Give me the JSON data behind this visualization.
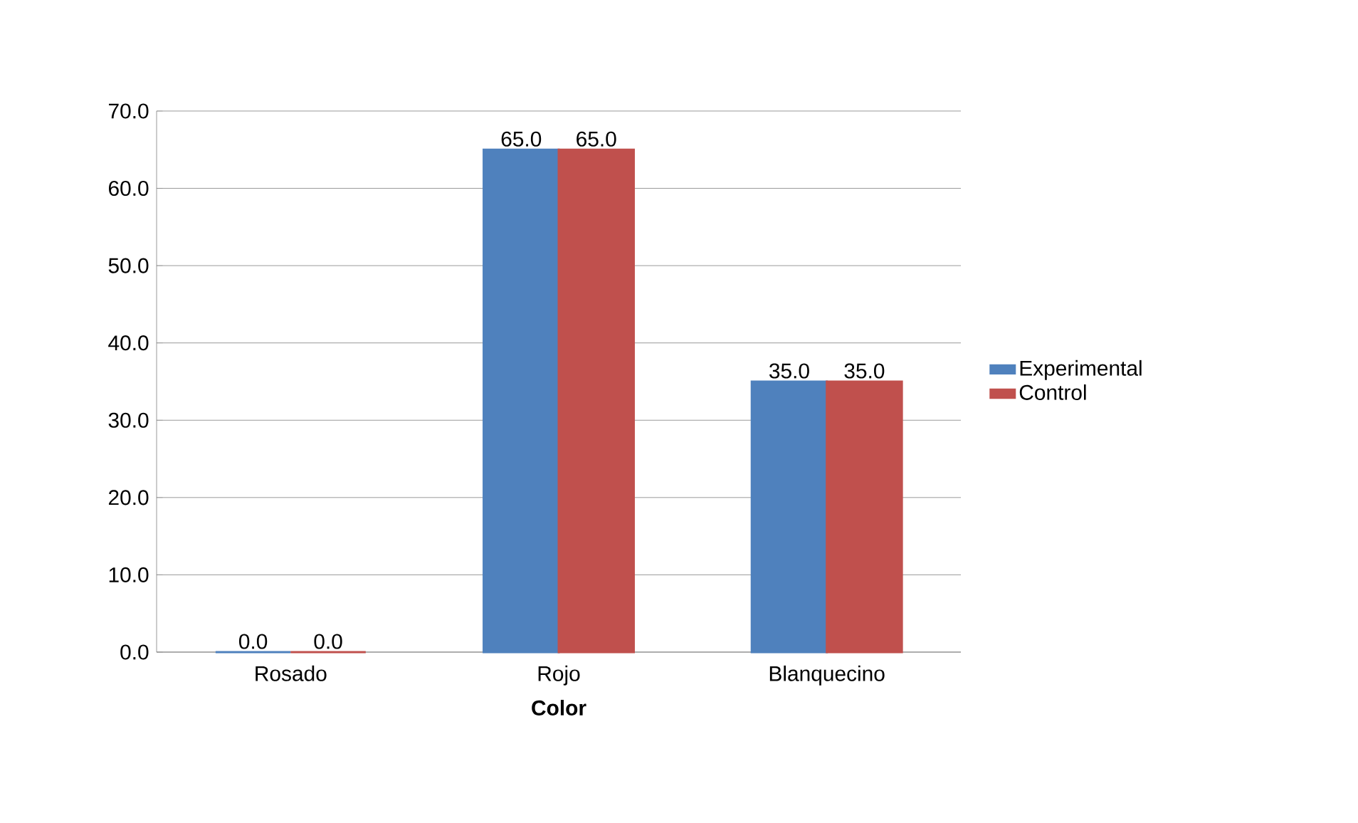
{
  "chart_data": {
    "type": "bar",
    "xlabel": "Color",
    "categories": [
      "Rosado",
      "Rojo",
      "Blanquecino"
    ],
    "series": [
      {
        "name": "Experimental",
        "color": "#4f81bd",
        "values": [
          0,
          65,
          35
        ],
        "value_labels": [
          "0.0",
          "65.0",
          "35.0"
        ]
      },
      {
        "name": "Control",
        "color": "#c0504d",
        "values": [
          0,
          65,
          35
        ],
        "value_labels": [
          "0.0",
          "65.0",
          "35.0"
        ]
      }
    ],
    "ylim": [
      0,
      70
    ],
    "yticks": [
      {
        "value": 0,
        "label": "0.0"
      },
      {
        "value": 10,
        "label": "10.0"
      },
      {
        "value": 20,
        "label": "20.0"
      },
      {
        "value": 30,
        "label": "30.0"
      },
      {
        "value": 40,
        "label": "40.0"
      },
      {
        "value": 50,
        "label": "50.0"
      },
      {
        "value": 60,
        "label": "60.0"
      },
      {
        "value": 70,
        "label": "70.0"
      }
    ],
    "grid": "y",
    "legend": "right"
  }
}
